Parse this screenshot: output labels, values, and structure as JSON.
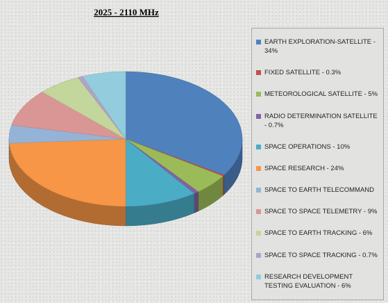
{
  "chart_data": {
    "type": "pie3d",
    "title": "2025 - 2110 MHz",
    "categories": [
      "EARTH EXPLORATION-SATELLITE - 34%",
      "FIXED SATELLITE - 0.3%",
      "METEOROLOGICAL SATELLITE - 5%",
      "RADIO DETERMINATION SATELLITE - 0.7%",
      "SPACE OPERATIONS - 10%",
      "SPACE RESEARCH - 24%",
      "SPACE TO EARTH TELECOMMAND",
      "SPACE TO SPACE TELEMETRY - 9%",
      "SPACE TO EARTH TRACKING - 6%",
      "SPACE TO SPACE TRACKING - 0.7%",
      "RESEARCH DEVELOPMENT TESTING EVALUATION - 6%"
    ],
    "values": [
      34,
      0.3,
      5,
      0.7,
      10,
      24,
      4.3,
      9,
      6,
      0.7,
      6
    ],
    "colors": [
      "#4f81bd",
      "#c0504d",
      "#9bbb59",
      "#8064a2",
      "#4bacc6",
      "#f79646",
      "#95b3d7",
      "#d99694",
      "#c3d69b",
      "#b3a2c7",
      "#93cddd"
    ],
    "legend": "right"
  }
}
